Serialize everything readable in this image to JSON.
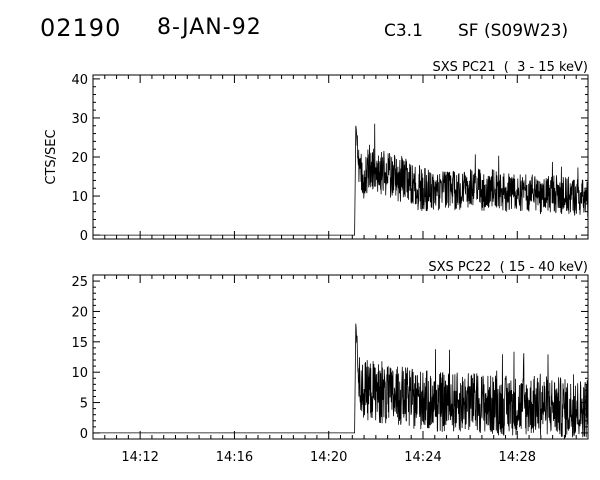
{
  "header": {
    "event_id": "02190",
    "date": "8-JAN-92",
    "flare_class": "C3.1",
    "flare_location": "SF (S09W23)"
  },
  "chart_data": [
    {
      "type": "line",
      "panel_label": "SXS PC21  (  3 - 15 keV)",
      "ylabel": "CTS/SEC",
      "xlim": [
        "14:10",
        "14:31"
      ],
      "ylim": [
        -1,
        41
      ],
      "yticks": [
        0,
        10,
        20,
        30,
        40
      ],
      "ytick_labels": [
        "0",
        "10",
        "20",
        "30",
        "40"
      ],
      "x_minor_step_min": 0.5,
      "series": [
        {
          "x": [
            "14:10",
            "14:21.1",
            "14:21.15",
            "14:21.3",
            "14:21.5",
            "14:21.8",
            "14:22",
            "14:22.4",
            "14:22.8",
            "14:23.2",
            "14:23.6",
            "14:24",
            "14:24.5",
            "14:25",
            "14:25.5",
            "14:26",
            "14:26.5",
            "14:27",
            "14:27.5",
            "14:28",
            "14:28.5",
            "14:29",
            "14:29.5",
            "14:30",
            "14:30.5",
            "14:31"
          ],
          "y": [
            0,
            0,
            28,
            17,
            15,
            18,
            17,
            16,
            15,
            14,
            12,
            12,
            11,
            12,
            11,
            12,
            11,
            12,
            11,
            11,
            11,
            10,
            11,
            10,
            10,
            9
          ],
          "noise_amplitude": [
            0,
            0,
            0,
            6,
            6,
            6,
            6,
            6,
            6,
            6,
            6,
            6,
            5,
            5,
            5,
            5,
            5,
            5,
            5,
            5,
            5,
            5,
            5,
            5,
            5,
            5
          ]
        }
      ]
    },
    {
      "type": "line",
      "panel_label": "SXS PC22  ( 15 - 40 keV)",
      "ylabel": "",
      "xlim": [
        "14:10",
        "14:31"
      ],
      "ylim": [
        -1,
        26
      ],
      "yticks": [
        0,
        5,
        10,
        15,
        20,
        25
      ],
      "ytick_labels": [
        "0",
        "5",
        "10",
        "15",
        "20",
        "25"
      ],
      "xticks": [
        "14:12",
        "14:16",
        "14:20",
        "14:24",
        "14:28"
      ],
      "xtick_labels": [
        "14:12",
        "14:16",
        "14:20",
        "14:24",
        "14:28"
      ],
      "x_minor_step_min": 0.5,
      "series": [
        {
          "x": [
            "14:10",
            "14:21.1",
            "14:21.15",
            "14:21.3",
            "14:21.5",
            "14:21.8",
            "14:22",
            "14:22.4",
            "14:22.8",
            "14:23.2",
            "14:23.6",
            "14:24",
            "14:24.5",
            "14:25",
            "14:25.5",
            "14:26",
            "14:26.5",
            "14:27",
            "14:27.5",
            "14:28",
            "14:28.5",
            "14:29",
            "14:29.5",
            "14:30",
            "14:30.5",
            "14:31"
          ],
          "y": [
            0,
            0,
            18,
            8,
            7,
            7,
            7,
            6,
            6,
            6,
            5.5,
            5.5,
            5,
            5,
            5,
            5,
            5,
            4.5,
            4.5,
            4.5,
            4.5,
            4.5,
            4.5,
            4,
            4,
            4
          ],
          "noise_amplitude": [
            0,
            0,
            0,
            5,
            5,
            5,
            5,
            5,
            5,
            5,
            5,
            5,
            5,
            5,
            5,
            5,
            5,
            5,
            5,
            5,
            5,
            5,
            5,
            5,
            5,
            5
          ]
        }
      ]
    }
  ]
}
